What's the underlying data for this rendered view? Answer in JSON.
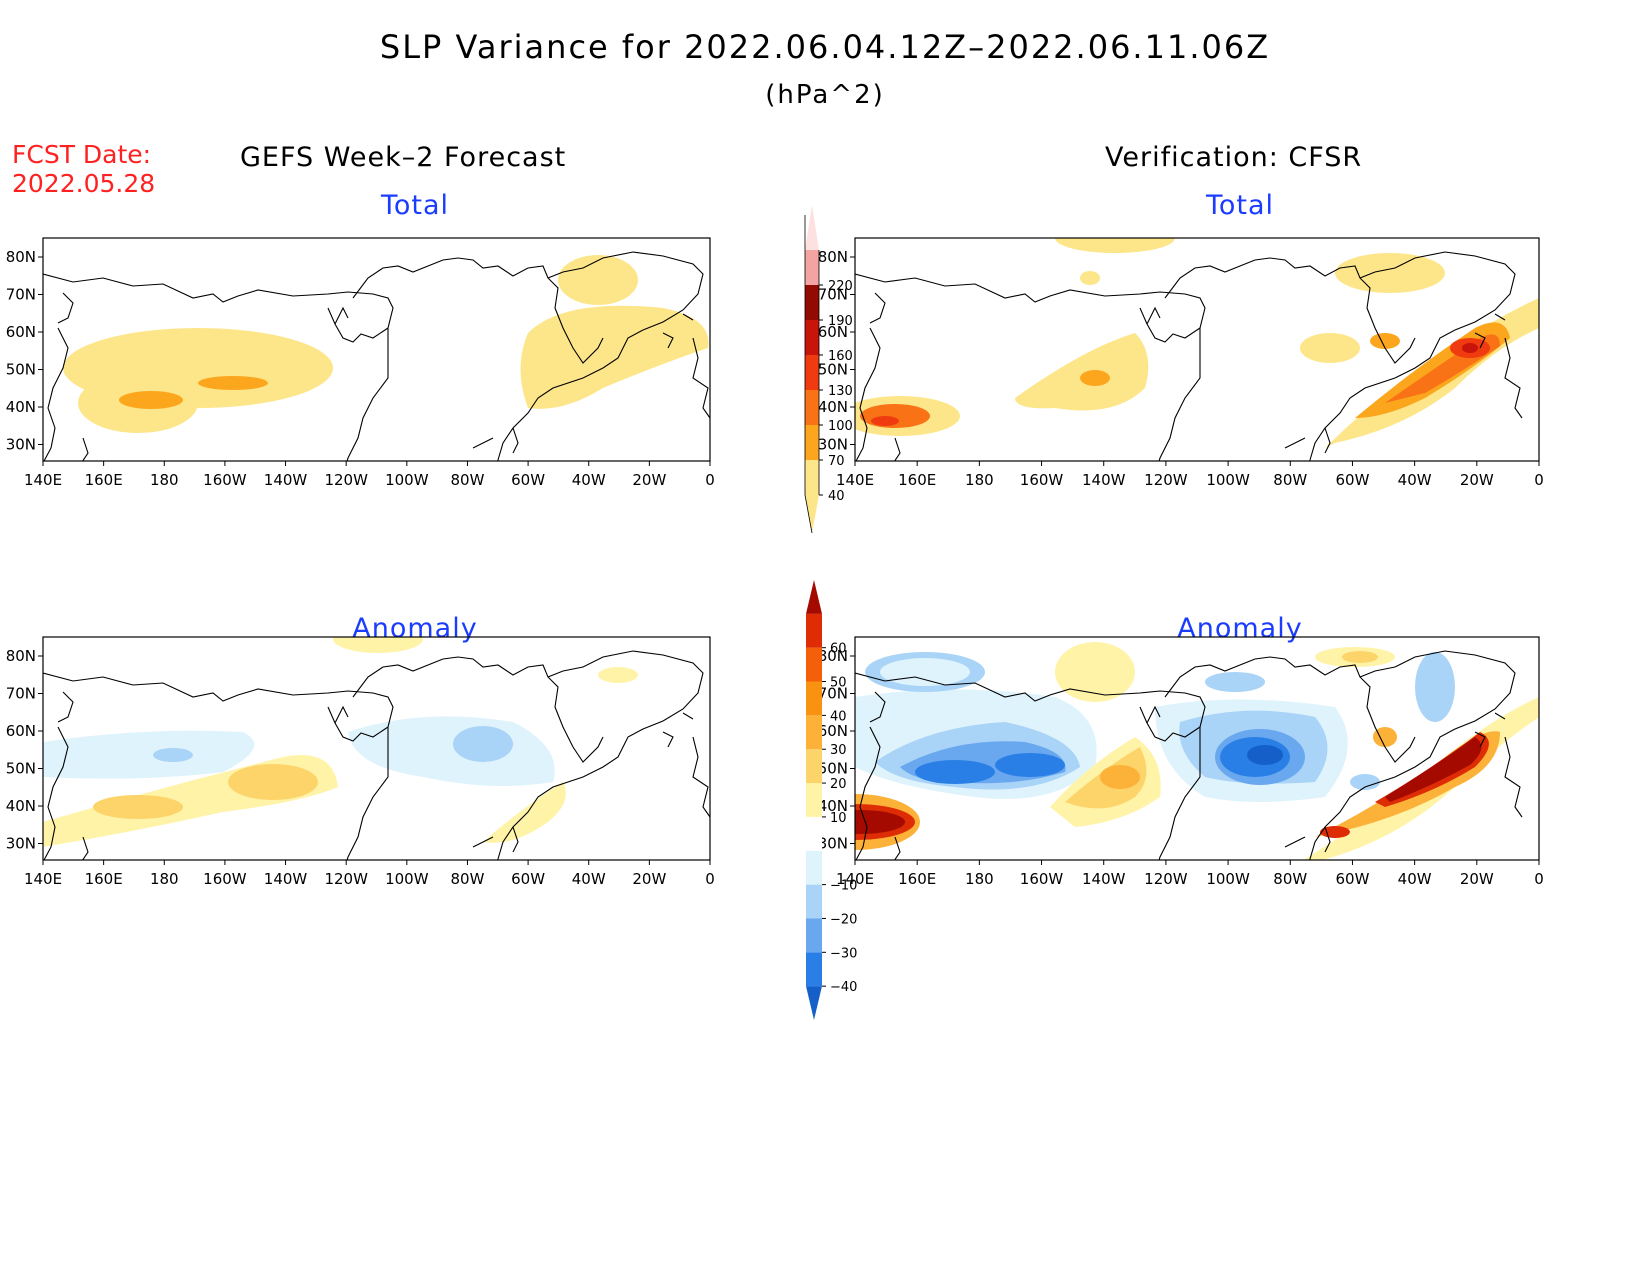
{
  "title": "SLP Variance for 2022.06.04.12Z–2022.06.11.06Z",
  "units": "(hPa^2)",
  "fcst_label": "FCST Date:",
  "fcst_date": "2022.05.28",
  "columns": {
    "forecast": "GEFS Week–2 Forecast",
    "verification": "Verification: CFSR"
  },
  "panels": {
    "total_label": "Total",
    "anomaly_label": "Anomaly"
  },
  "axes": {
    "lat_ticks": [
      "80N",
      "70N",
      "60N",
      "50N",
      "40N",
      "30N"
    ],
    "lon_ticks": [
      "140E",
      "160E",
      "180",
      "160W",
      "140W",
      "120W",
      "100W",
      "80W",
      "60W",
      "40W",
      "20W",
      "0"
    ]
  },
  "total_colorbar": {
    "levels": [
      "40",
      "70",
      "100",
      "130",
      "160",
      "190",
      "220"
    ],
    "colors": [
      "#fde68a",
      "#fca61e",
      "#f97316",
      "#ef3b0f",
      "#c8140a",
      "#930a02",
      "#f4a3a3",
      "#fde0e0"
    ]
  },
  "anomaly_colorbar": {
    "levels": [
      "−40",
      "−30",
      "−20",
      "−10",
      "10",
      "20",
      "30",
      "40",
      "50",
      "60"
    ],
    "colors": [
      "#1560c8",
      "#2a7fe6",
      "#69a8ef",
      "#a9d3f7",
      "#dff3fc",
      "#ffffff",
      "#fff3a8",
      "#fcd46a",
      "#fcb238",
      "#f99210",
      "#f4600a",
      "#de2c04",
      "#a50a00"
    ]
  }
}
